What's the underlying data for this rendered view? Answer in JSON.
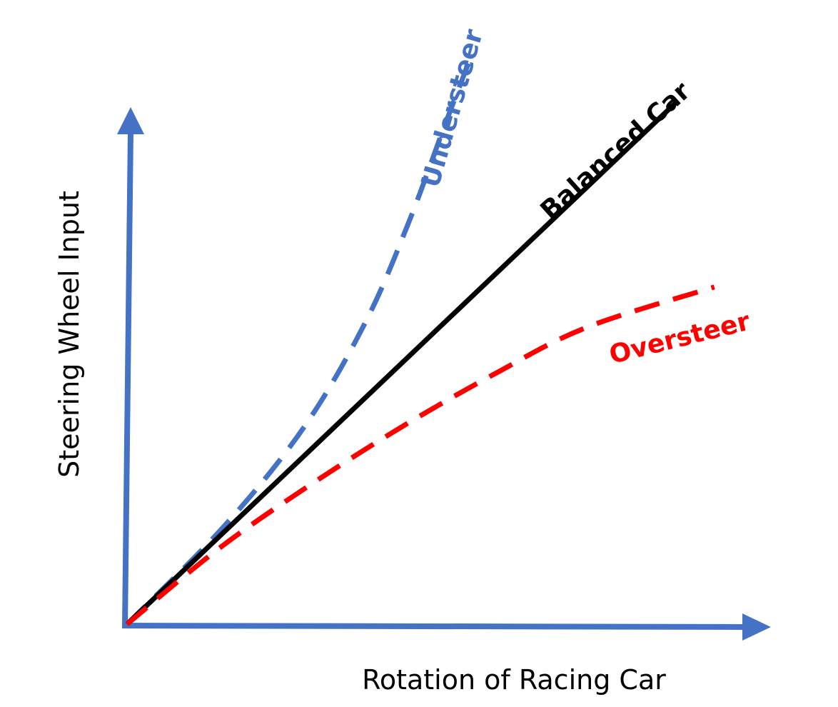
{
  "chart_data": {
    "type": "line",
    "title": "",
    "xlabel": "Rotation of Racing Car",
    "ylabel": "Steering Wheel Input",
    "xlim": [
      0,
      10
    ],
    "ylim": [
      0,
      10
    ],
    "grid": false,
    "legend": "inline labels",
    "axis_color": "#4472C4",
    "series": [
      {
        "name": "Understeer",
        "color": "#4472C4",
        "style": "dashed",
        "label_color": "#4472C4",
        "points": [
          [
            0,
            0
          ],
          [
            1.6,
            1.7
          ],
          [
            2.9,
            3.4
          ],
          [
            3.9,
            5.2
          ],
          [
            4.6,
            6.9
          ],
          [
            5.2,
            8.6
          ],
          [
            5.6,
            9.7
          ]
        ]
      },
      {
        "name": "Balanced Car",
        "color": "#000000",
        "style": "solid",
        "label_color": "#000000",
        "points": [
          [
            0,
            0
          ],
          [
            9.0,
            9.0
          ]
        ]
      },
      {
        "name": "Oversteer",
        "color": "#FF0000",
        "style": "dashed",
        "label_color": "#FF0000",
        "points": [
          [
            0,
            0
          ],
          [
            1.5,
            1.3
          ],
          [
            3.0,
            2.4
          ],
          [
            4.5,
            3.4
          ],
          [
            6.0,
            4.3
          ],
          [
            7.5,
            5.1
          ],
          [
            9.6,
            5.8
          ]
        ]
      }
    ]
  }
}
